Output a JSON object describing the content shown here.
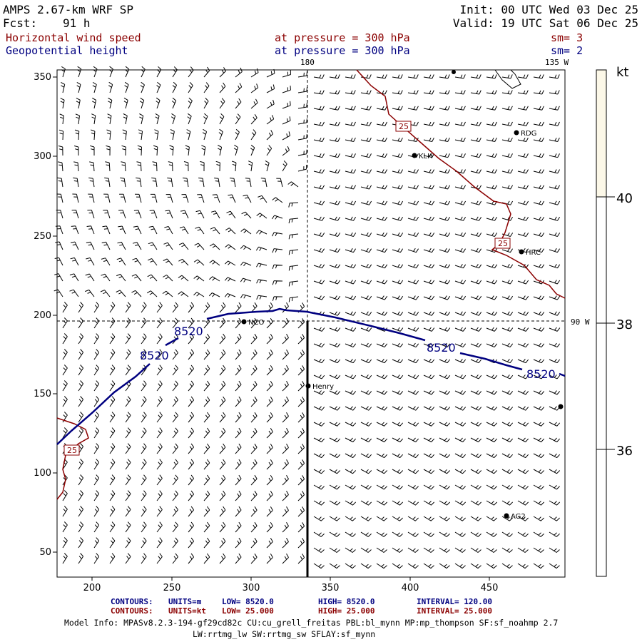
{
  "header": {
    "title": "AMPS 2.67-km WRF SP",
    "init": "Init: 00 UTC Wed 03 Dec 25",
    "fcst_label": "Fcst:",
    "fcst_value": "91 h",
    "valid": "Valid: 19 UTC Sat 06 Dec 25",
    "field1": {
      "name": "Horizontal wind speed",
      "level": "at pressure =  300 hPa",
      "sm": "sm= 3"
    },
    "field2": {
      "name": "Geopotential height",
      "level": "at pressure =  300 hPa",
      "sm": "sm= 2"
    }
  },
  "map": {
    "x_ticks": [
      "200",
      "250",
      "300",
      "350",
      "400",
      "450"
    ],
    "y_ticks": [
      "350",
      "300",
      "250",
      "200",
      "150",
      "100",
      "50"
    ],
    "meridian_labels": {
      "top_180": "180",
      "top_135w": "135 W",
      "right_90w": "90 W"
    },
    "height_contour_labels": [
      "8520",
      "8520",
      "8520",
      "8520"
    ],
    "wind_contour_labels": [
      "25",
      "25",
      "25"
    ],
    "stations": [
      "NCO",
      "Henry",
      "KLH",
      "RDG",
      "HRC",
      "AG2"
    ]
  },
  "colorbar": {
    "unit": "kt",
    "ticks": [
      "40",
      "38",
      "36"
    ],
    "fill_color": "#fcf8e8"
  },
  "footer": {
    "contour1": {
      "label": "CONTOURS:",
      "units": "UNITS=m",
      "low": "LOW=   8520.0",
      "high": "HIGH=   8520.0",
      "interval": "INTERVAL=    120.00"
    },
    "contour2": {
      "label": "CONTOURS:",
      "units": "UNITS=kt",
      "low": "LOW=   25.000",
      "high": "HIGH=  25.000",
      "interval": "INTERVAL=    25.000"
    },
    "model_info1": "Model Info: MPASv8.2.3-194-gf29cd82c CU:cu_grell_freitas PBL:bl_mynn MP:mp_thompson SF:sf_noahmp 2.7",
    "model_info2": "LW:rrtmg_lw SW:rrtmg_sw SFLAY:sf_mynn"
  },
  "colors": {
    "blue": "#000080",
    "red": "#8b0000",
    "black": "#000000"
  }
}
